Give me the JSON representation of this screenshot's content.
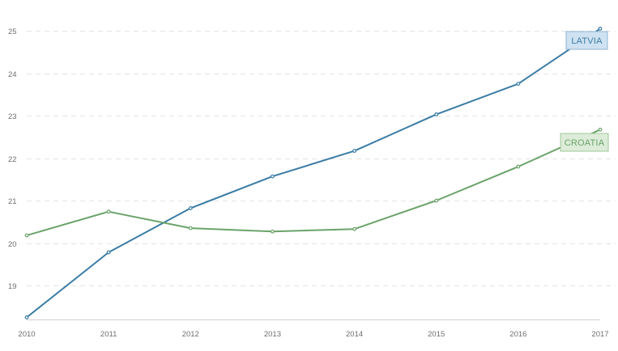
{
  "chart_data": {
    "type": "line",
    "title": "",
    "xlabel": "",
    "ylabel": "",
    "x": [
      "2010",
      "2011",
      "2012",
      "2013",
      "2014",
      "2015",
      "2016",
      "2017"
    ],
    "xlim": [
      2010,
      2017
    ],
    "ylim": [
      18.2,
      25.3
    ],
    "y_ticks": [
      "19",
      "20",
      "21",
      "22",
      "23",
      "24",
      "25"
    ],
    "grid": true,
    "series": [
      {
        "name": "LATVIA",
        "color": "#3a7ca5",
        "label_fill": "#cfe2f1",
        "label_stroke": "#8fb4d4",
        "values": [
          18.25,
          19.78,
          20.82,
          21.57,
          22.17,
          23.03,
          23.75,
          25.05
        ]
      },
      {
        "name": "CROATIA",
        "color": "#6aa36a",
        "label_fill": "#dcecd8",
        "label_stroke": "#9fc79a",
        "values": [
          20.18,
          20.74,
          20.35,
          20.27,
          20.33,
          21.0,
          21.8,
          22.67
        ]
      }
    ]
  }
}
